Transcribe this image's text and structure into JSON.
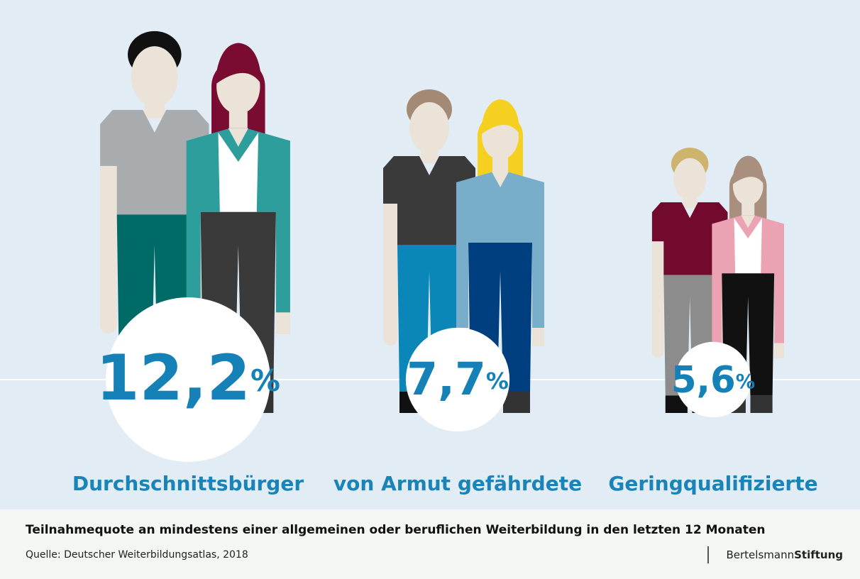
{
  "chart_data": {
    "type": "pictogram",
    "categories": [
      "Durchschnittsbürger",
      "von Armut gefährdete",
      "Geringqualifizierte"
    ],
    "values": [
      12.2,
      7.7,
      5.6
    ],
    "value_labels": [
      "12,2%",
      "7,7%",
      "5,6%"
    ],
    "color": "#1581b6",
    "caption": "Teilnahmequote an mindestens einer allgemeinen oder beruflichen Weiterbildung in den letzten 12 Monaten",
    "source": "Quelle: Deutscher Weiterbildungsatlas, 2018",
    "logo": {
      "name": "Bertelsmann",
      "emphasis": "Stiftung"
    }
  }
}
